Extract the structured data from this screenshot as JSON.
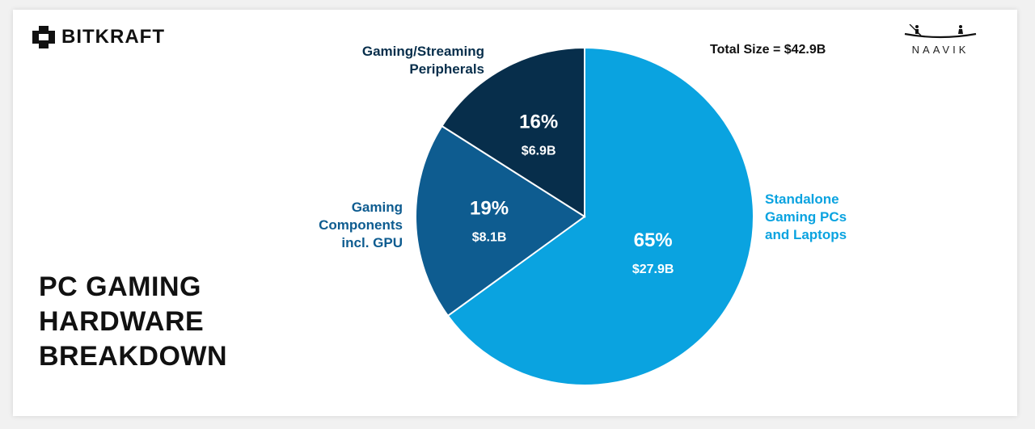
{
  "brand": {
    "left_logo": "BITKRAFT",
    "right_logo": "NAAVIK"
  },
  "title": {
    "line1": "PC GAMING",
    "line2": "HARDWARE",
    "line3": "BREAKDOWN"
  },
  "total_label": "Total Size = $42.9B",
  "chart_data": {
    "type": "pie",
    "title": "PC GAMING HARDWARE BREAKDOWN",
    "total": "Total Size = $42.9B",
    "slices": [
      {
        "name": "Standalone Gaming PCs and Laptops",
        "label_lines": [
          "Standalone",
          "Gaming PCs",
          "and Laptops"
        ],
        "percent": 65,
        "percent_label": "65%",
        "value": 27.9,
        "value_label": "$27.9B",
        "color": "#0aa3e0",
        "label_color": "#0aa3e0"
      },
      {
        "name": "Gaming Components incl. GPU",
        "label_lines": [
          "Gaming",
          "Components",
          "incl. GPU"
        ],
        "percent": 19,
        "percent_label": "19%",
        "value": 8.1,
        "value_label": "$8.1B",
        "color": "#0e5c90",
        "label_color": "#0e5c90"
      },
      {
        "name": "Gaming/Streaming Peripherals",
        "label_lines": [
          "Gaming/Streaming",
          "Peripherals"
        ],
        "percent": 16,
        "percent_label": "16%",
        "value": 6.9,
        "value_label": "$6.9B",
        "color": "#072e4b",
        "label_color": "#072e4b"
      }
    ]
  }
}
